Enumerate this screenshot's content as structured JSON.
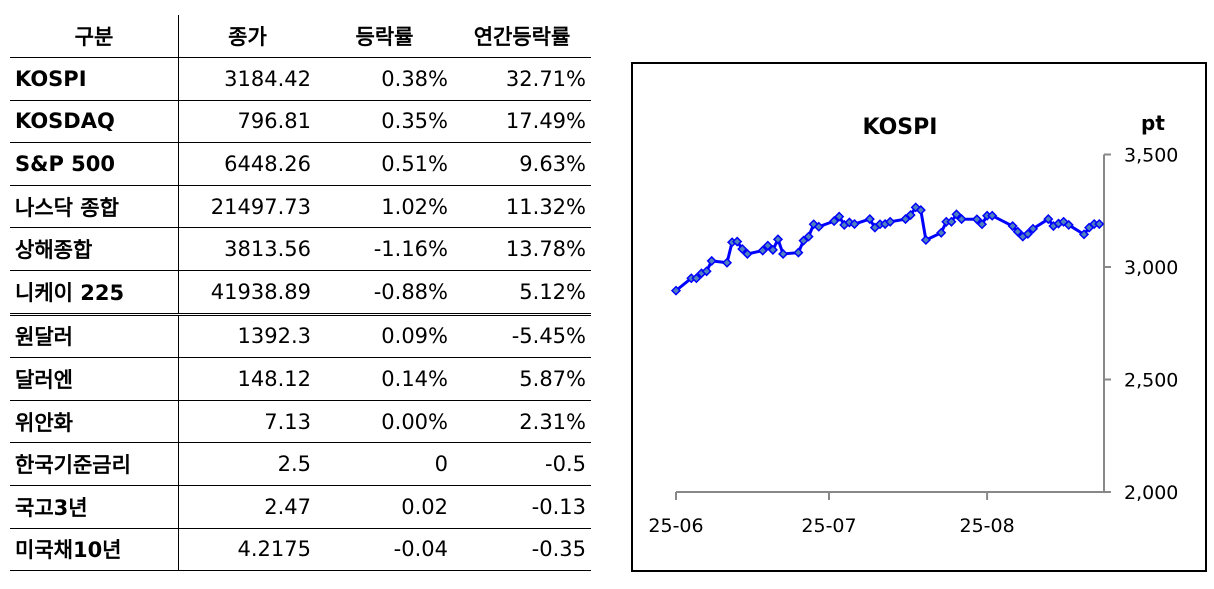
{
  "table": {
    "headers": [
      "구분",
      "종가",
      "등락률",
      "연간등락률"
    ],
    "rows": [
      [
        "KOSPI",
        "3184.42",
        "0.38%",
        "32.71%"
      ],
      [
        "KOSDAQ",
        "796.81",
        "0.35%",
        "17.49%"
      ],
      [
        "S&P 500",
        "6448.26",
        "0.51%",
        "9.63%"
      ],
      [
        "나스닥 종합",
        "21497.73",
        "1.02%",
        "11.32%"
      ],
      [
        "상해종합",
        "3813.56",
        "-1.16%",
        "13.78%"
      ],
      [
        "니케이 225",
        "41938.89",
        "-0.88%",
        "5.12%"
      ],
      [
        "원달러",
        "1392.3",
        "0.09%",
        "-5.45%"
      ],
      [
        "달러엔",
        "148.12",
        "0.14%",
        "5.87%"
      ],
      [
        "위안화",
        "7.13",
        "0.00%",
        "2.31%"
      ],
      [
        "한국기준금리",
        "2.5",
        "0",
        "-0.5"
      ],
      [
        "국고3년",
        "2.47",
        "0.02",
        "-0.13"
      ],
      [
        "미국채10년",
        "4.2175",
        "-0.04",
        "-0.35"
      ]
    ]
  },
  "chart_data": {
    "type": "line",
    "title": "KOSPI",
    "ylabel": "pt",
    "ylim": [
      2000,
      3500
    ],
    "yticks": [
      2000,
      2500,
      3000,
      3500
    ],
    "ytick_labels": [
      "2,000",
      "2,500",
      "3,000",
      "3,500"
    ],
    "xlabel_note": "x = days since 2025-06-01",
    "xticks": [
      0,
      30,
      61
    ],
    "xtick_labels": [
      "25-06",
      "25-07",
      "25-08"
    ],
    "xlim": [
      0,
      84
    ],
    "color": "#0000ff",
    "marker_color": "#4f81bd",
    "x": [
      0,
      3,
      4,
      5,
      6,
      7,
      10,
      11,
      12,
      13,
      14,
      17,
      18,
      19,
      20,
      21,
      24,
      25,
      26,
      27,
      28,
      31,
      32,
      33,
      34,
      35,
      38,
      39,
      40,
      41,
      42,
      45,
      46,
      47,
      48,
      49,
      52,
      53,
      54,
      55,
      56,
      59,
      60,
      61,
      62,
      66,
      67,
      68,
      69,
      70,
      73,
      74,
      75,
      76,
      77,
      80,
      81,
      82,
      83
    ],
    "values": [
      2895,
      2950,
      2950,
      2972,
      2981,
      3027,
      3019,
      3110,
      3113,
      3080,
      3058,
      3073,
      3095,
      3076,
      3123,
      3058,
      3064,
      3117,
      3135,
      3190,
      3179,
      3204,
      3224,
      3187,
      3198,
      3191,
      3213,
      3175,
      3190,
      3191,
      3201,
      3213,
      3231,
      3265,
      3253,
      3120,
      3152,
      3201,
      3201,
      3234,
      3213,
      3212,
      3190,
      3228,
      3228,
      3182,
      3157,
      3135,
      3147,
      3170,
      3213,
      3182,
      3193,
      3201,
      3187,
      3145,
      3175,
      3191,
      3191
    ]
  }
}
